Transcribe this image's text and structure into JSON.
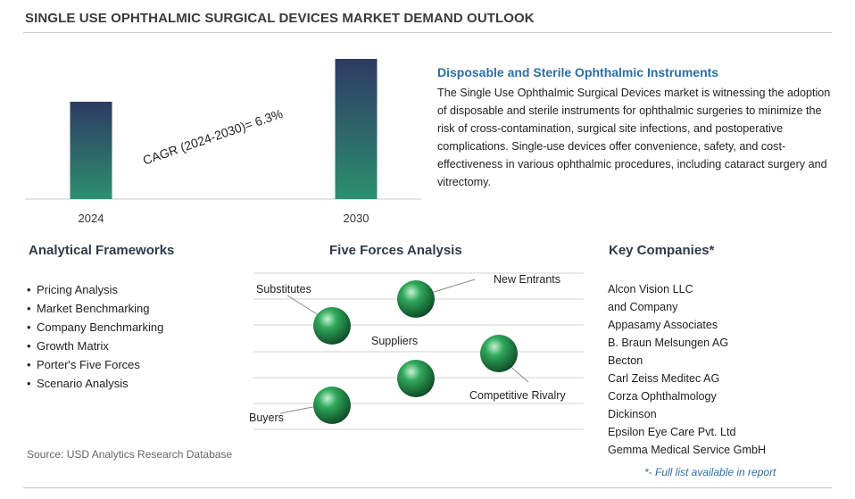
{
  "header": {
    "title": "SINGLE USE OPHTHALMIC SURGICAL DEVICES MARKET DEMAND OUTLOOK"
  },
  "chart_data": {
    "type": "bar",
    "categories": [
      "2024",
      "2030"
    ],
    "values": [
      1.0,
      1.44
    ],
    "annotation": "CAGR (2024-2030)=  6.3%",
    "colors": {
      "bar_top": "#2e3a64",
      "bar_bottom": "#2c8f6e"
    }
  },
  "description": {
    "heading": "Disposable and Sterile Ophthalmic Instruments",
    "body": "The Single Use Ophthalmic Surgical Devices market is witnessing the adoption of disposable and sterile instruments for ophthalmic surgeries to minimize the risk of cross-contamination, surgical site infections, and postoperative complications. Single-use devices offer convenience, safety, and cost-effectiveness in various ophthalmic procedures, including cataract surgery and vitrectomy."
  },
  "frameworks": {
    "heading": "Analytical Frameworks",
    "items": [
      "Pricing Analysis",
      "Market Benchmarking",
      "Company Benchmarking",
      "Growth Matrix",
      "Porter's Five Forces",
      "Scenario Analysis"
    ]
  },
  "five_forces": {
    "heading": "Five Forces Analysis",
    "labels": {
      "substitutes": "Substitutes",
      "new_entrants": "New Entrants",
      "suppliers": "Suppliers",
      "competitive_rivalry": "Competitive Rivalry",
      "buyers": "Buyers"
    },
    "sphere_color": "#2fa85a"
  },
  "companies": {
    "heading": "Key Companies*",
    "items": [
      "Alcon Vision LLC",
      "and Company",
      "Appasamy Associates",
      "B. Braun Melsungen AG",
      "Becton",
      "Carl Zeiss Meditec AG",
      "Corza Ophthalmology",
      "Dickinson",
      "Epsilon Eye Care Pvt. Ltd",
      "Gemma Medical Service GmbH"
    ],
    "note": "*- Full list available in report"
  },
  "footer": {
    "source": "Source: USD Analytics Research Database"
  }
}
